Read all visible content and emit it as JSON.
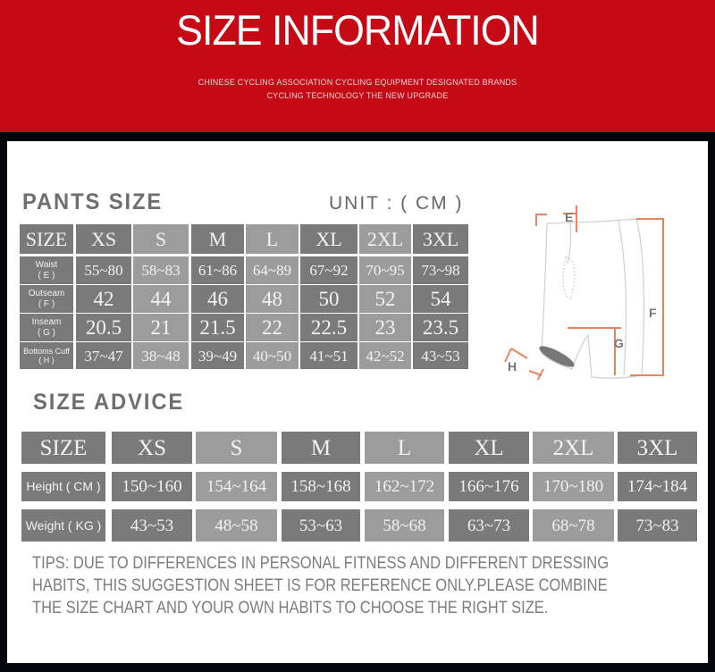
{
  "banner": {
    "title": "SIZE INFORMATION",
    "subtitle_1": "CHINESE CYCLING ASSOCIATION CYCLING EQUIPMENT DESIGNATED BRANDS",
    "subtitle_2": "CYCLING TECHNOLOGY THE NEW UPGRADE",
    "color": "#c50a16"
  },
  "pants": {
    "title": "PANTS SIZE",
    "unit": "UNIT : ( CM )",
    "header": [
      "SIZE",
      "XS",
      "S",
      "M",
      "L",
      "XL",
      "2XL",
      "3XL"
    ],
    "rows": [
      {
        "label": "Waist",
        "code": "( E )",
        "values": [
          "55~80",
          "58~83",
          "61~86",
          "64~89",
          "67~92",
          "70~95",
          "73~98"
        ]
      },
      {
        "label": "Outseam",
        "code": "( F )",
        "values": [
          "42",
          "44",
          "46",
          "48",
          "50",
          "52",
          "54"
        ]
      },
      {
        "label": "Inseam",
        "code": "( G )",
        "values": [
          "20.5",
          "21",
          "21.5",
          "22",
          "22.5",
          "23",
          "23.5"
        ]
      },
      {
        "label": "Bottoms Cuff",
        "code": "( H )",
        "values": [
          "37~47",
          "38~48",
          "39~49",
          "40~50",
          "41~51",
          "42~52",
          "43~53"
        ]
      }
    ],
    "diagram_labels": {
      "e": "E",
      "f": "F",
      "g": "G",
      "h": "H"
    }
  },
  "advice": {
    "title": "SIZE ADVICE",
    "header": [
      "SIZE",
      "XS",
      "S",
      "M",
      "L",
      "XL",
      "2XL",
      "3XL"
    ],
    "rows": [
      {
        "label": "Height ( CM )",
        "values": [
          "150~160",
          "154~164",
          "158~168",
          "162~172",
          "166~176",
          "170~180",
          "174~184"
        ]
      },
      {
        "label": "Weight ( KG )",
        "values": [
          "43~53",
          "48~58",
          "53~63",
          "58~68",
          "63~73",
          "68~78",
          "73~83"
        ]
      }
    ],
    "tips": [
      "TIPS: DUE TO DIFFERENCES IN PERSONAL FITNESS AND DIFFERENT DRESSING",
      "HABITS, THIS SUGGESTION SHEET IS FOR REFERENCE ONLY.PLEASE COMBINE",
      "THE SIZE CHART AND YOUR OWN HABITS TO CHOOSE THE RIGHT SIZE."
    ]
  },
  "colors": {
    "cell_dark": "#7a7a7a",
    "cell_light": "#9c9c9c",
    "diagram_accent": "#e8845f"
  }
}
